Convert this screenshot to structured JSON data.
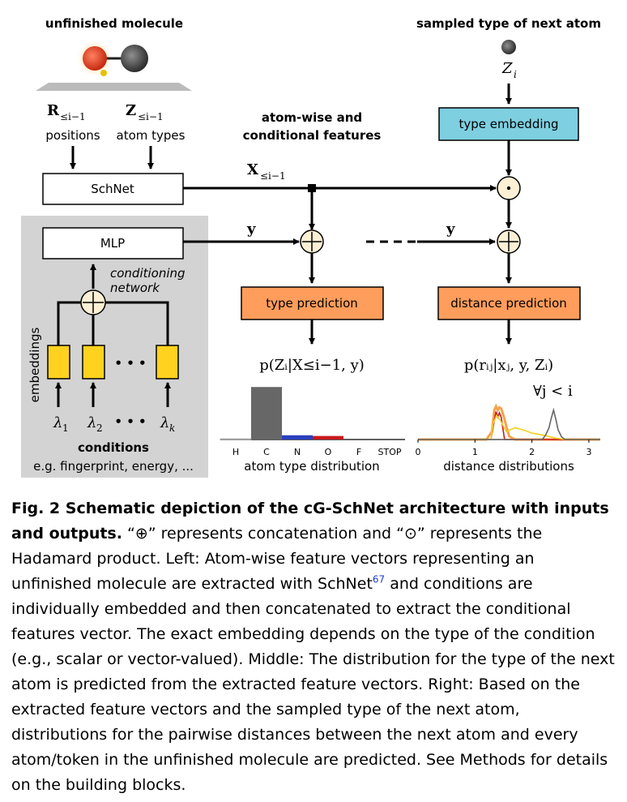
{
  "diagram": {
    "molecule_title": "unfinished molecule",
    "next_atom_title": "sampled type of next atom",
    "positions_symbol": "R",
    "positions_sub": "≤i−1",
    "positions_label": "positions",
    "types_symbol": "Z",
    "types_sub": "≤i−1",
    "types_label": "atom types",
    "features_label_line1": "atom-wise and",
    "features_label_line2": "conditional features",
    "x_symbol": "X",
    "x_sub": "≤i−1",
    "y_symbol_1": "y",
    "y_symbol_2": "y",
    "zi_symbol": "Z",
    "zi_sub": "i",
    "schnet_label": "SchNet",
    "mlp_label": "MLP",
    "type_embedding_label": "type embedding",
    "type_prediction_label": "type prediction",
    "distance_prediction_label": "distance prediction",
    "conditioning_network_line1": "conditioning",
    "conditioning_network_line2": "network",
    "embeddings_label": "embeddings",
    "lambda_1": "λ",
    "lambda_1_sub": "1",
    "lambda_2": "λ",
    "lambda_2_sub": "2",
    "lambda_k": "λ",
    "lambda_k_sub": "k",
    "ellipsis": "• • •",
    "conditions_label": "conditions",
    "conditions_examples": "e.g. fingerprint, energy, ...",
    "type_formula": "p(Zᵢ|X≤i−1, y)",
    "distance_formula": "p(rᵢⱼ|xⱼ, y, Zᵢ)",
    "forall_label": "∀j < i",
    "type_axis_title": "atom type distribution",
    "distance_axis_title": "distance distributions",
    "colors": {
      "teal": "#7ecfe0",
      "orange": "#ff9d5c",
      "yellow": "#ffd21f",
      "grey_panel": "#d3d3d3",
      "bar_c": "#676767",
      "bar_n": "#2a3fc0",
      "bar_o": "#c8191e",
      "dist_orange": "#f7a24a",
      "dist_yellow": "#f3d21d",
      "dist_grey": "#666666"
    }
  },
  "chart_data": [
    {
      "type": "bar",
      "categories": [
        "H",
        "C",
        "N",
        "O",
        "F",
        "STOP"
      ],
      "values": [
        0.01,
        0.74,
        0.06,
        0.05,
        0.0,
        0.0
      ],
      "xlabel": "atom type distribution",
      "ylim": [
        0,
        0.8
      ]
    },
    {
      "type": "line",
      "xlabel": "distance distributions",
      "xticks": [
        "0",
        "1",
        "2",
        "3"
      ],
      "xlim": [
        0,
        3.2
      ],
      "ylim": [
        0,
        1
      ],
      "series": [
        {
          "color": "#f7a24a",
          "x": [
            0.0,
            1.2,
            1.3,
            1.34,
            1.37,
            1.4,
            1.43,
            1.46,
            1.5,
            1.55,
            1.6,
            1.7,
            3.2
          ],
          "y": [
            0.0,
            0.0,
            0.15,
            0.55,
            0.62,
            0.55,
            0.6,
            0.58,
            0.45,
            0.25,
            0.06,
            0.0,
            0.0
          ]
        },
        {
          "color": "#c8191e",
          "x": [
            0.0,
            1.28,
            1.33,
            1.37,
            1.4,
            1.43,
            1.46,
            1.52,
            3.2
          ],
          "y": [
            0.0,
            0.0,
            0.3,
            0.52,
            0.42,
            0.5,
            0.42,
            0.0,
            0.0
          ]
        },
        {
          "color": "#f3d21d",
          "x": [
            0.0,
            1.28,
            1.32,
            1.38,
            1.45,
            1.55,
            1.7,
            1.85,
            2.0,
            2.2,
            2.4,
            2.6,
            3.2
          ],
          "y": [
            0.0,
            0.0,
            0.3,
            0.45,
            0.35,
            0.15,
            0.22,
            0.18,
            0.12,
            0.08,
            0.03,
            0.0,
            0.0
          ]
        },
        {
          "color": "#666666",
          "x": [
            0.0,
            2.18,
            2.24,
            2.3,
            2.34,
            2.38,
            2.42,
            2.46,
            2.52,
            2.58,
            3.2
          ],
          "y": [
            0.0,
            0.0,
            0.08,
            0.22,
            0.4,
            0.55,
            0.38,
            0.18,
            0.05,
            0.0,
            0.0
          ]
        }
      ]
    }
  ],
  "caption": {
    "title": "Fig. 2 Schematic depiction of the cG-SchNet architecture with inputs and outputs.",
    "text_1": " “⊕” represents concatenation and “⊙” represents the Hadamard product. Left: Atom-wise feature vectors representing an unfinished molecule are extracted with SchNet",
    "ref": "67",
    "text_2": " and conditions are individually embedded and then concatenated to extract the conditional features vector. The exact embedding depends on the type of the condition (e.g., scalar or vector-valued). Middle: The distribution for the type of the next atom is predicted from the extracted feature vectors. Right: Based on the extracted feature vectors and the sampled type of the next atom, distributions for the pairwise distances between the next atom and every atom/token in the unfinished molecule are predicted. See Methods for details on the building blocks."
  }
}
